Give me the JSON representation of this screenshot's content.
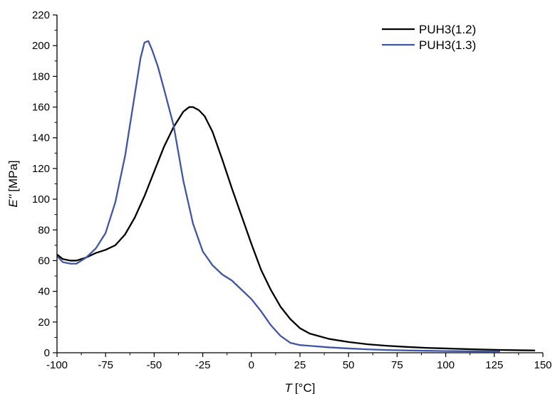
{
  "chart_data": {
    "type": "line",
    "xlabel_var": "T",
    "xlabel_unit": "[°C]",
    "ylabel_var": "E''",
    "ylabel_unit": "[MPa]",
    "xlim": [
      -100,
      150
    ],
    "ylim": [
      0,
      220
    ],
    "xticks": [
      -100,
      -75,
      -50,
      -25,
      0,
      25,
      50,
      75,
      100,
      125,
      150
    ],
    "yticks": [
      0,
      20,
      40,
      60,
      80,
      100,
      120,
      140,
      160,
      180,
      200,
      220
    ],
    "grid": false,
    "legend_position": "top-right",
    "series": [
      {
        "name": "PUH3(1.2)",
        "color": "#000000",
        "x": [
          -100,
          -97,
          -93,
          -90,
          -85,
          -80,
          -75,
          -70,
          -65,
          -60,
          -55,
          -50,
          -45,
          -40,
          -35,
          -32,
          -30,
          -27,
          -24,
          -20,
          -15,
          -10,
          -5,
          0,
          5,
          10,
          15,
          20,
          25,
          30,
          40,
          50,
          60,
          70,
          80,
          90,
          100,
          110,
          120,
          130,
          140,
          146
        ],
        "y": [
          64,
          61,
          60,
          60,
          62,
          65,
          67,
          70,
          77,
          88,
          102,
          118,
          134,
          147,
          157,
          160,
          160,
          158,
          154,
          144,
          126,
          107,
          89,
          71,
          54,
          41,
          30,
          22,
          16,
          12.5,
          9,
          7,
          5.5,
          4.5,
          3.8,
          3.2,
          2.8,
          2.4,
          2.1,
          1.8,
          1.6,
          1.5
        ]
      },
      {
        "name": "PUH3(1.3)",
        "color": "#3f55a6",
        "x": [
          -100,
          -97,
          -93,
          -90,
          -85,
          -80,
          -75,
          -70,
          -65,
          -60,
          -57,
          -55,
          -53,
          -51,
          -48,
          -45,
          -40,
          -35,
          -30,
          -25,
          -20,
          -15,
          -10,
          -5,
          0,
          5,
          10,
          15,
          20,
          25,
          30,
          40,
          50,
          60,
          70,
          80,
          90,
          100,
          110,
          120,
          128
        ],
        "y": [
          63,
          59,
          58,
          58,
          62,
          68,
          78,
          98,
          128,
          168,
          192,
          202,
          203,
          197,
          186,
          172,
          148,
          112,
          84,
          66,
          57,
          51,
          47,
          41,
          35,
          27,
          18,
          11,
          6.5,
          5,
          4.5,
          3.5,
          2.8,
          2.2,
          1.8,
          1.5,
          1.3,
          1.1,
          1.0,
          0.9,
          0.9
        ]
      }
    ]
  }
}
